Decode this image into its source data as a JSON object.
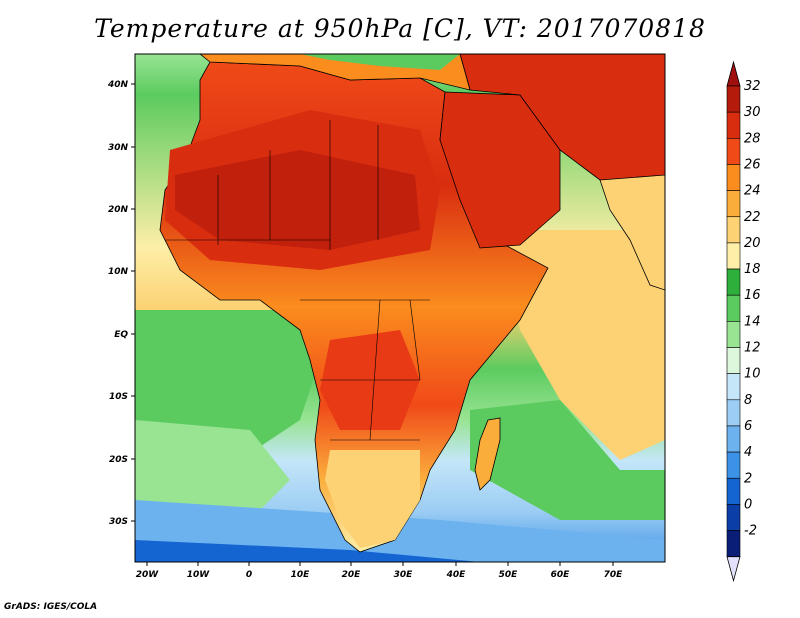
{
  "title": "Temperature at 950hPa [C], VT: 2017070818",
  "credit": "GrADS: IGES/COLA",
  "map": {
    "lat_labels": [
      "40N",
      "30N",
      "20N",
      "10N",
      "EQ",
      "10S",
      "20S",
      "30S"
    ],
    "lon_labels": [
      "20W",
      "10W",
      "0",
      "10E",
      "20E",
      "30E",
      "40E",
      "50E",
      "60E",
      "70E"
    ]
  },
  "colorbar": {
    "labels": [
      "32",
      "30",
      "28",
      "26",
      "24",
      "22",
      "20",
      "18",
      "16",
      "14",
      "12",
      "10",
      "8",
      "6",
      "4",
      "2",
      "0",
      "-2"
    ],
    "colors": [
      "#b41b0a",
      "#d92d10",
      "#f04a18",
      "#fb8c1e",
      "#fbad3c",
      "#fcd274",
      "#fdefa8",
      "#2eaf3b",
      "#5ccb5f",
      "#98e493",
      "#dcf7dc",
      "#c4e6f8",
      "#9ccdf4",
      "#6cb2ee",
      "#3c92e6",
      "#1464d2",
      "#0c3ea8",
      "#0a1e78"
    ],
    "cap_top": "#a01010",
    "cap_bottom": "#e2e1fb"
  }
}
